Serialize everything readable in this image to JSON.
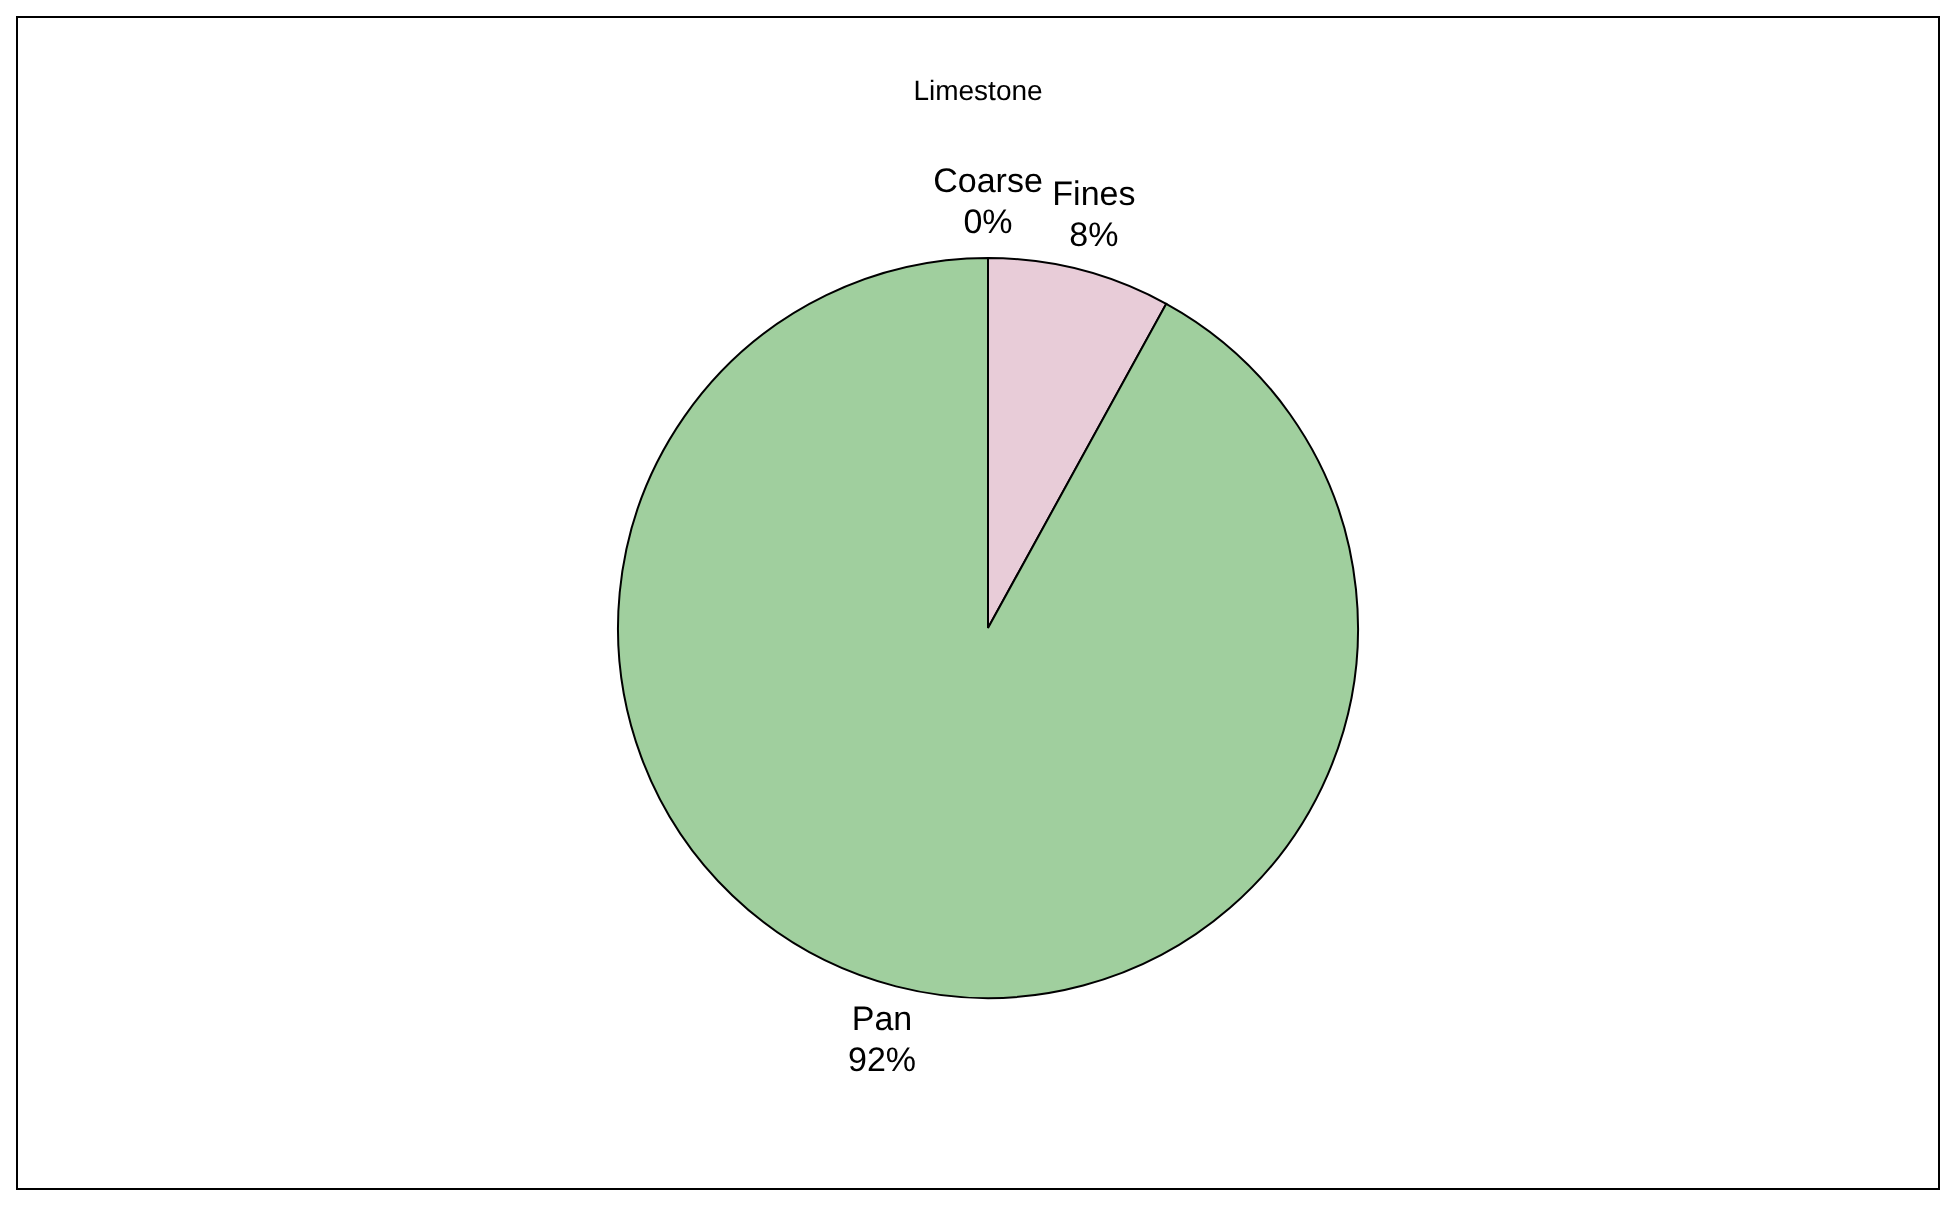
{
  "chart_data": {
    "type": "pie",
    "title": "Limestone",
    "categories": [
      "Coarse",
      "Fines",
      "Pan"
    ],
    "values": [
      0,
      8,
      92
    ],
    "value_labels": [
      "0%",
      "8%",
      "92%"
    ],
    "colors": [
      "#f4a070",
      "#e8ccd8",
      "#a0cf9e"
    ]
  }
}
